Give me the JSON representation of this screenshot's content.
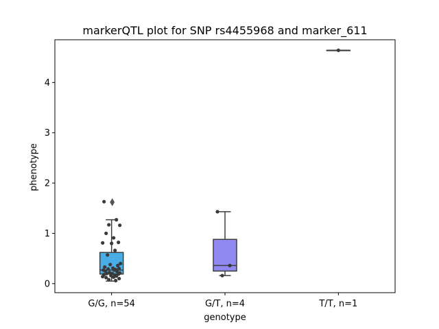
{
  "chart_data": {
    "type": "box",
    "title": "markerQTL plot for SNP rs4455968 and marker_611",
    "xlabel": "genotype",
    "ylabel": "phenotype",
    "ylim": [
      -0.18,
      4.85
    ],
    "yticks": [
      0,
      1,
      2,
      3,
      4
    ],
    "grid": false,
    "categories": [
      "G/G, n=54",
      "G/T, n=4",
      "T/T, n=1"
    ],
    "colors": [
      "#4aaee6",
      "#9089f2",
      "#c98ee6"
    ],
    "boxes": [
      {
        "category": "G/G, n=54",
        "q1": 0.19,
        "median": 0.27,
        "q3": 0.62,
        "whisker_low": 0.05,
        "whisker_high": 1.27,
        "outliers": [
          1.62
        ]
      },
      {
        "category": "G/T, n=4",
        "q1": 0.25,
        "median": 0.36,
        "q3": 0.88,
        "whisker_low": 0.16,
        "whisker_high": 1.43,
        "outliers": []
      },
      {
        "category": "T/T, n=1",
        "q1": 4.64,
        "median": 4.64,
        "q3": 4.64,
        "whisker_low": 4.64,
        "whisker_high": 4.64,
        "outliers": []
      }
    ],
    "points": [
      {
        "category": "G/G, n=54",
        "values": [
          1.63,
          1.27,
          1.17,
          1.16,
          1.0,
          0.91,
          0.82,
          0.81,
          0.8,
          0.66,
          0.57,
          0.4,
          0.38,
          0.36,
          0.33,
          0.31,
          0.3,
          0.29,
          0.28,
          0.27,
          0.27,
          0.25,
          0.24,
          0.22,
          0.21,
          0.2,
          0.2,
          0.19,
          0.18,
          0.17,
          0.16,
          0.15,
          0.14,
          0.13,
          0.12,
          0.1,
          0.08,
          0.06
        ]
      },
      {
        "category": "G/T, n=4",
        "values": [
          1.43,
          0.36,
          0.16
        ]
      },
      {
        "category": "T/T, n=1",
        "values": [
          4.64
        ]
      }
    ]
  }
}
